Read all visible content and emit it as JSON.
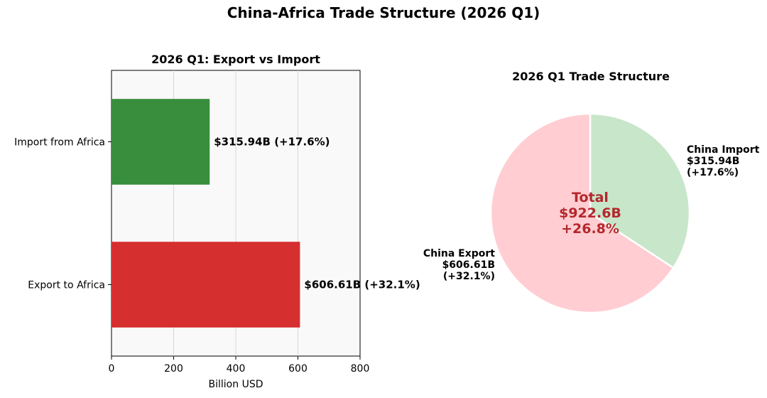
{
  "title": "China-Africa Trade Structure (2026 Q1)",
  "colors": {
    "export_bar": "#d62f2f",
    "import_bar": "#388e3c",
    "export_slice": "#ffcdd2",
    "import_slice": "#c8e6c9",
    "center_text": "#b3282d"
  },
  "chart_data": [
    {
      "type": "bar",
      "orientation": "horizontal",
      "title": "2026 Q1: Export vs Import",
      "categories": [
        "Import from Africa",
        "Export to Africa"
      ],
      "values": [
        315.94,
        606.61
      ],
      "data_labels": [
        "$315.94B  (+17.6%)",
        "$606.61B  (+32.1%)"
      ],
      "xlabel": "Billion USD",
      "ylabel": "",
      "xlim": [
        0,
        800
      ],
      "xticks": [
        0,
        200,
        400,
        600,
        800
      ],
      "grid": true
    },
    {
      "type": "pie",
      "title": "2026 Q1 Trade Structure",
      "slices": [
        {
          "name": "China Import",
          "value": 315.94,
          "label_lines": [
            "China Import",
            "$315.94B",
            "(+17.6%)"
          ]
        },
        {
          "name": "China Export",
          "value": 606.61,
          "label_lines": [
            "China Export",
            "$606.61B",
            "(+32.1%)"
          ]
        }
      ],
      "center_lines": [
        "Total",
        "$922.6B",
        "+26.8%"
      ]
    }
  ]
}
